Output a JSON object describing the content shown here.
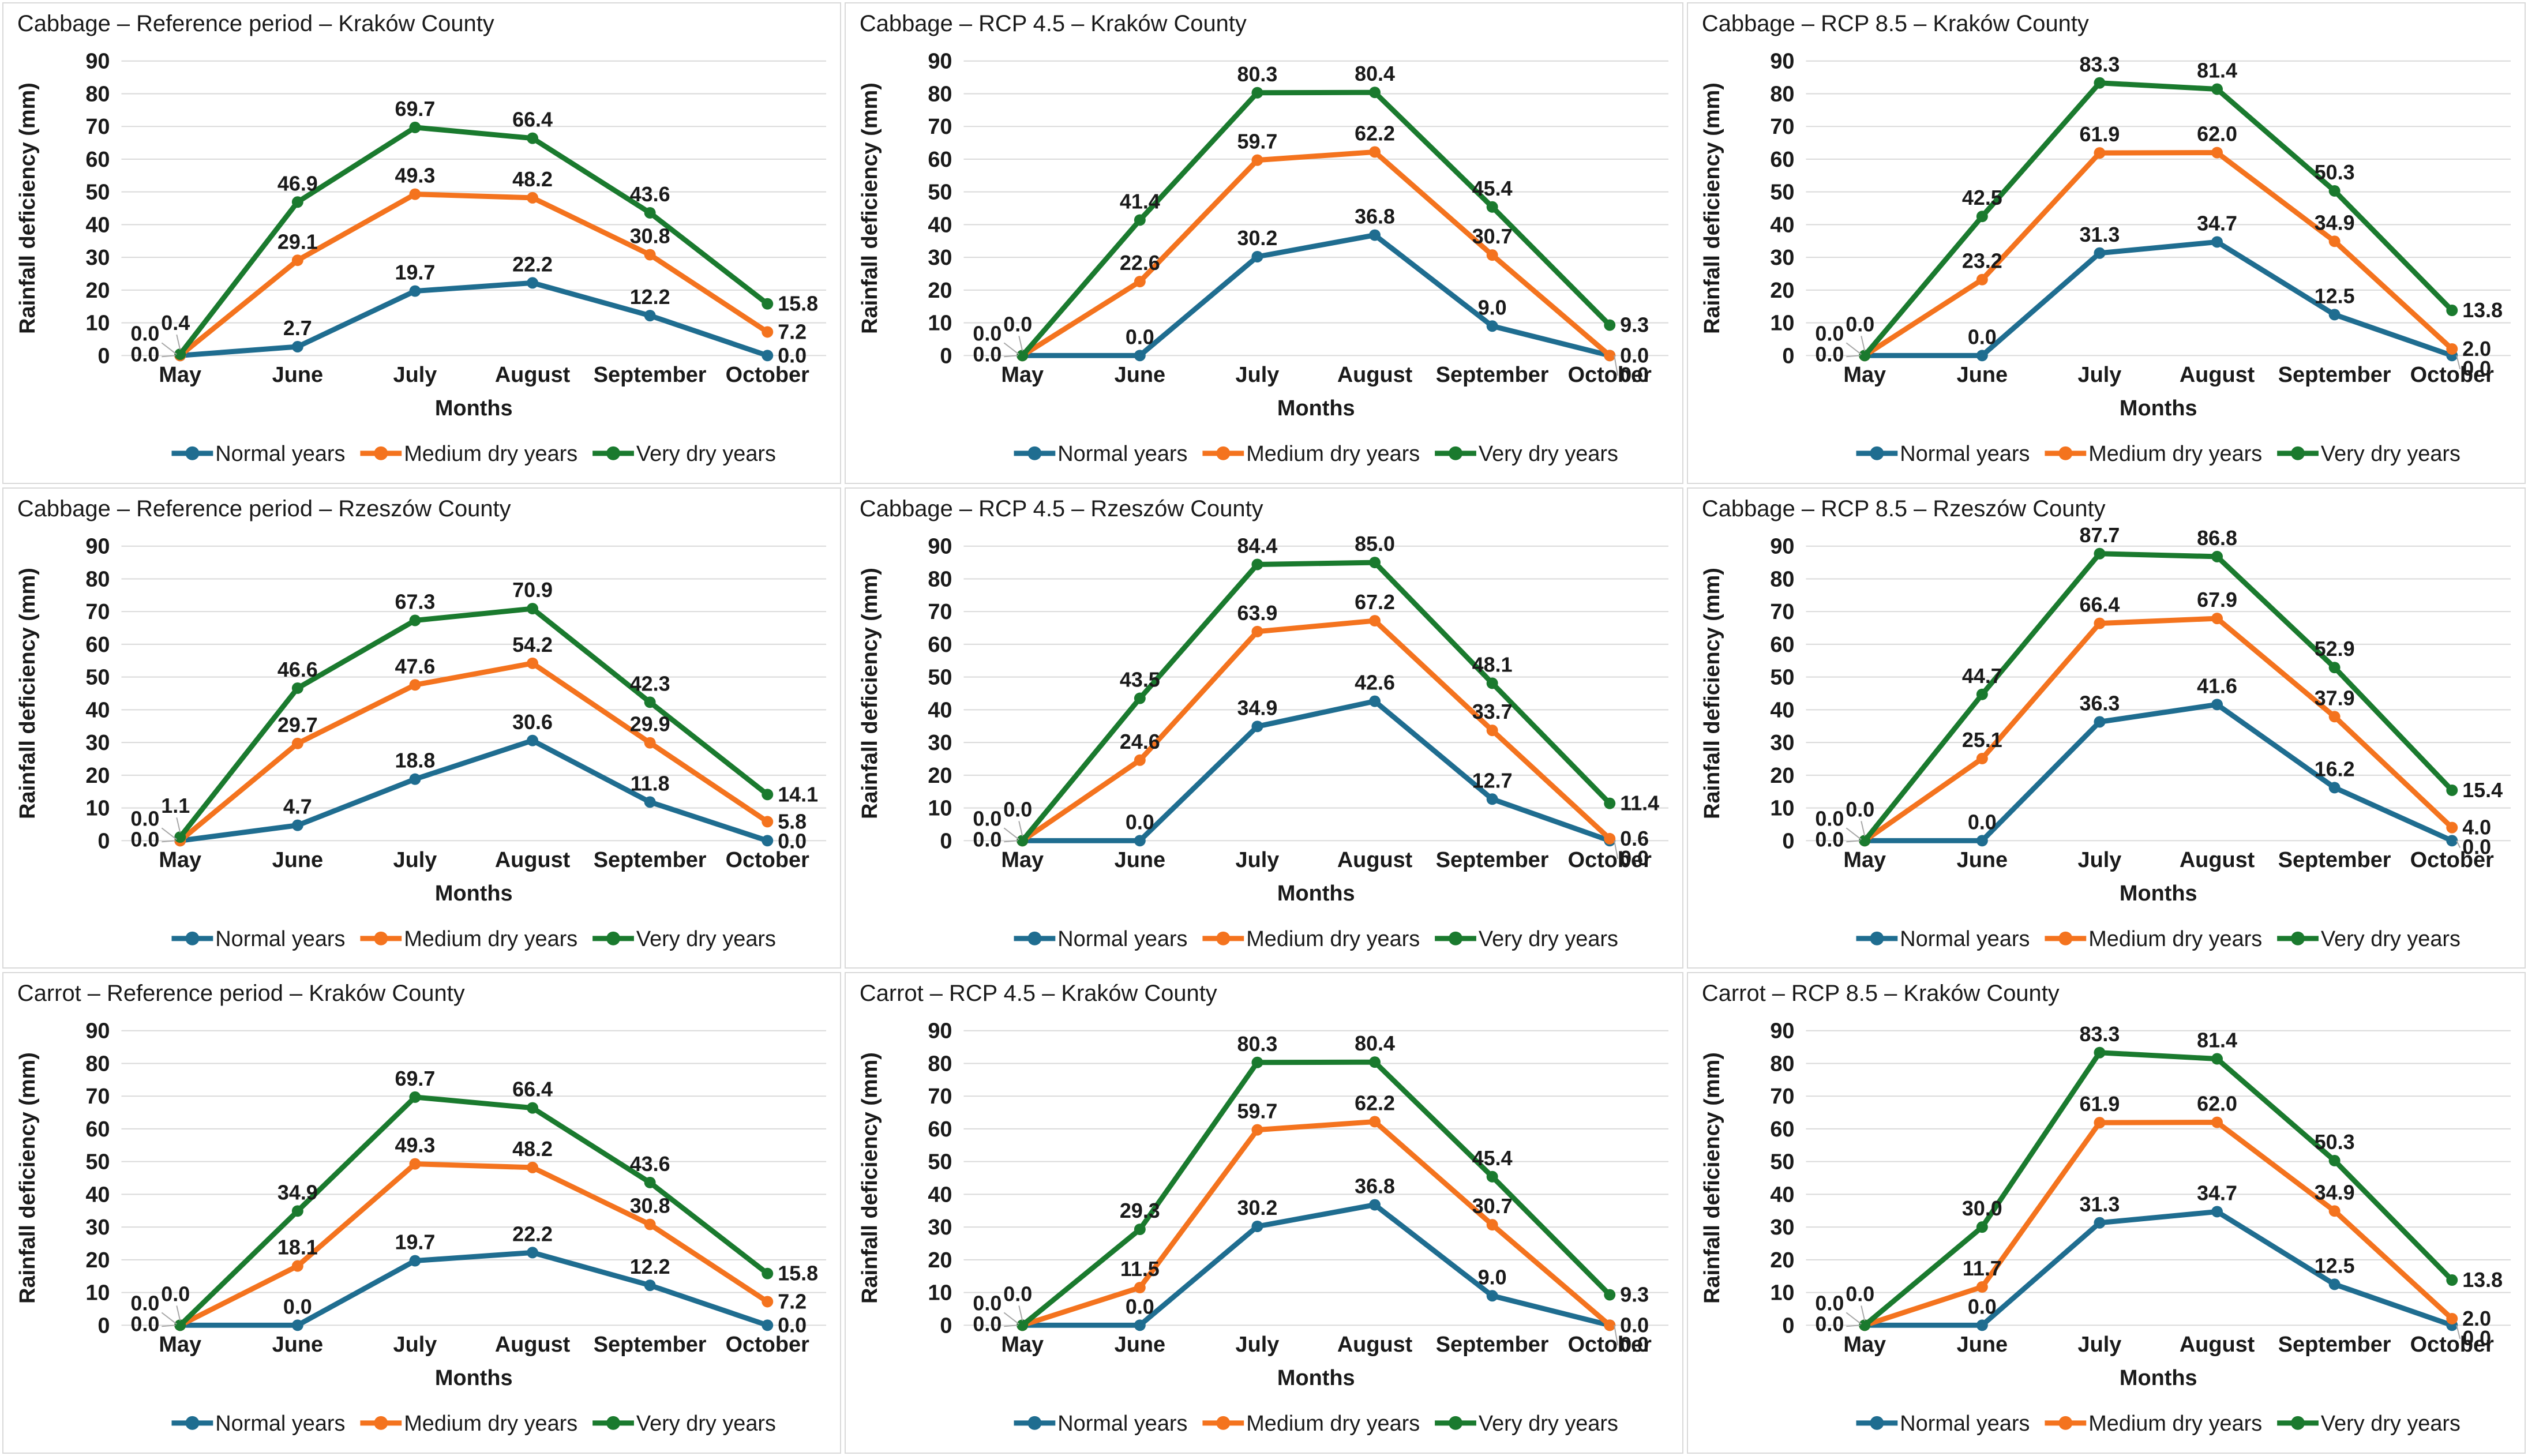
{
  "page": {
    "background": "#FFFFFF",
    "grid_rows": 3,
    "grid_cols": 3
  },
  "colors": {
    "normal_years": "#1F6D90",
    "medium_dry_years": "#F4731E",
    "very_dry_years": "#1A7A2E",
    "gridline": "#D9D9D9",
    "panel_border": "#D9D9D9",
    "label_text": "#1A1A1A",
    "leader_line": "#A6A6A6"
  },
  "chart_data": [
    {
      "type": "line",
      "title": "Cabbage – Reference period – Kraków County",
      "categories": [
        "May",
        "June",
        "July",
        "August",
        "September",
        "October"
      ],
      "xlabel": "Months",
      "ylabel": "Rainfall deficiency  (mm)",
      "ylim": [
        0,
        90
      ],
      "ytick_step": 10,
      "grid": true,
      "legend_position": "bottom",
      "series": [
        {
          "name": "Normal years",
          "color": "#1F6D90",
          "values": [
            0.0,
            2.7,
            19.7,
            22.2,
            12.2,
            0.0
          ]
        },
        {
          "name": "Medium dry years",
          "color": "#F4731E",
          "values": [
            0.0,
            29.1,
            49.3,
            48.2,
            30.8,
            7.2
          ]
        },
        {
          "name": "Very dry years",
          "color": "#1A7A2E",
          "values": [
            0.4,
            46.9,
            69.7,
            66.4,
            43.6,
            15.8
          ]
        }
      ]
    },
    {
      "type": "line",
      "title": "Cabbage – RCP 4.5 – Kraków County",
      "categories": [
        "May",
        "June",
        "July",
        "August",
        "September",
        "October"
      ],
      "xlabel": "Months",
      "ylabel": "Rainfall deficiency  (mm)",
      "ylim": [
        0,
        90
      ],
      "ytick_step": 10,
      "grid": true,
      "legend_position": "bottom",
      "series": [
        {
          "name": "Normal years",
          "color": "#1F6D90",
          "values": [
            0.0,
            0.0,
            30.2,
            36.8,
            9.0,
            0.0
          ]
        },
        {
          "name": "Medium dry years",
          "color": "#F4731E",
          "values": [
            0.0,
            22.6,
            59.7,
            62.2,
            30.7,
            0.0
          ]
        },
        {
          "name": "Very dry years",
          "color": "#1A7A2E",
          "values": [
            0.0,
            41.4,
            80.3,
            80.4,
            45.4,
            9.3
          ]
        }
      ]
    },
    {
      "type": "line",
      "title": "Cabbage – RCP 8.5 – Kraków County",
      "categories": [
        "May",
        "June",
        "July",
        "August",
        "September",
        "October"
      ],
      "xlabel": "Months",
      "ylabel": "Rainfall deficiency  (mm)",
      "ylim": [
        0,
        90
      ],
      "ytick_step": 10,
      "grid": true,
      "legend_position": "bottom",
      "series": [
        {
          "name": "Normal years",
          "color": "#1F6D90",
          "values": [
            0.0,
            0.0,
            31.3,
            34.7,
            12.5,
            0.0
          ]
        },
        {
          "name": "Medium dry years",
          "color": "#F4731E",
          "values": [
            0.0,
            23.2,
            61.9,
            62.0,
            34.9,
            2.0
          ]
        },
        {
          "name": "Very dry years",
          "color": "#1A7A2E",
          "values": [
            0.0,
            42.5,
            83.3,
            81.4,
            50.3,
            13.8
          ]
        }
      ]
    },
    {
      "type": "line",
      "title": "Cabbage – Reference period – Rzeszów County",
      "categories": [
        "May",
        "June",
        "July",
        "August",
        "September",
        "October"
      ],
      "xlabel": "Months",
      "ylabel": "Rainfall deficiency  (mm)",
      "ylim": [
        0,
        90
      ],
      "ytick_step": 10,
      "grid": true,
      "legend_position": "bottom",
      "series": [
        {
          "name": "Normal years",
          "color": "#1F6D90",
          "values": [
            0.0,
            4.7,
            18.8,
            30.6,
            11.8,
            0.0
          ]
        },
        {
          "name": "Medium dry years",
          "color": "#F4731E",
          "values": [
            0.0,
            29.7,
            47.6,
            54.2,
            29.9,
            5.8
          ]
        },
        {
          "name": "Very dry years",
          "color": "#1A7A2E",
          "values": [
            1.1,
            46.6,
            67.3,
            70.9,
            42.3,
            14.1
          ]
        }
      ]
    },
    {
      "type": "line",
      "title": "Cabbage – RCP 4.5 – Rzeszów County",
      "categories": [
        "May",
        "June",
        "July",
        "August",
        "September",
        "October"
      ],
      "xlabel": "Months",
      "ylabel": "Rainfall deficiency  (mm)",
      "ylim": [
        0,
        90
      ],
      "ytick_step": 10,
      "grid": true,
      "legend_position": "bottom",
      "series": [
        {
          "name": "Normal years",
          "color": "#1F6D90",
          "values": [
            0.0,
            0.0,
            34.9,
            42.6,
            12.7,
            0.0
          ]
        },
        {
          "name": "Medium dry years",
          "color": "#F4731E",
          "values": [
            0.0,
            24.6,
            63.9,
            67.2,
            33.7,
            0.6
          ]
        },
        {
          "name": "Very dry years",
          "color": "#1A7A2E",
          "values": [
            0.0,
            43.5,
            84.4,
            85.0,
            48.1,
            11.4
          ]
        }
      ]
    },
    {
      "type": "line",
      "title": "Cabbage – RCP 8.5 – Rzeszów County",
      "categories": [
        "May",
        "June",
        "July",
        "August",
        "September",
        "October"
      ],
      "xlabel": "Months",
      "ylabel": "Rainfall deficiency  (mm)",
      "ylim": [
        0,
        90
      ],
      "ytick_step": 10,
      "grid": true,
      "legend_position": "bottom",
      "series": [
        {
          "name": "Normal years",
          "color": "#1F6D90",
          "values": [
            0.0,
            0.0,
            36.3,
            41.6,
            16.2,
            0.0
          ]
        },
        {
          "name": "Medium dry years",
          "color": "#F4731E",
          "values": [
            0.0,
            25.1,
            66.4,
            67.9,
            37.9,
            4.0
          ]
        },
        {
          "name": "Very dry years",
          "color": "#1A7A2E",
          "values": [
            0.0,
            44.7,
            87.7,
            86.8,
            52.9,
            15.4
          ]
        }
      ]
    },
    {
      "type": "line",
      "title": "Carrot – Reference period – Kraków County",
      "categories": [
        "May",
        "June",
        "July",
        "August",
        "September",
        "October"
      ],
      "xlabel": "Months",
      "ylabel": "Rainfall deficiency  (mm)",
      "ylim": [
        0,
        90
      ],
      "ytick_step": 10,
      "grid": true,
      "legend_position": "bottom",
      "series": [
        {
          "name": "Normal years",
          "color": "#1F6D90",
          "values": [
            0.0,
            0.0,
            19.7,
            22.2,
            12.2,
            0.0
          ]
        },
        {
          "name": "Medium dry years",
          "color": "#F4731E",
          "values": [
            0.0,
            18.1,
            49.3,
            48.2,
            30.8,
            7.2
          ]
        },
        {
          "name": "Very dry years",
          "color": "#1A7A2E",
          "values": [
            0.0,
            34.9,
            69.7,
            66.4,
            43.6,
            15.8
          ]
        }
      ]
    },
    {
      "type": "line",
      "title": "Carrot – RCP 4.5 – Kraków County",
      "categories": [
        "May",
        "June",
        "July",
        "August",
        "September",
        "October"
      ],
      "xlabel": "Months",
      "ylabel": "Rainfall deficiency  (mm)",
      "ylim": [
        0,
        90
      ],
      "ytick_step": 10,
      "grid": true,
      "legend_position": "bottom",
      "series": [
        {
          "name": "Normal years",
          "color": "#1F6D90",
          "values": [
            0.0,
            0.0,
            30.2,
            36.8,
            9.0,
            0.0
          ]
        },
        {
          "name": "Medium dry years",
          "color": "#F4731E",
          "values": [
            0.0,
            11.5,
            59.7,
            62.2,
            30.7,
            0.0
          ]
        },
        {
          "name": "Very dry years",
          "color": "#1A7A2E",
          "values": [
            0.0,
            29.3,
            80.3,
            80.4,
            45.4,
            9.3
          ]
        }
      ]
    },
    {
      "type": "line",
      "title": "Carrot – RCP 8.5 – Kraków County",
      "categories": [
        "May",
        "June",
        "July",
        "August",
        "September",
        "October"
      ],
      "xlabel": "Months",
      "ylabel": "Rainfall deficiency  (mm)",
      "ylim": [
        0,
        90
      ],
      "ytick_step": 10,
      "grid": true,
      "legend_position": "bottom",
      "series": [
        {
          "name": "Normal years",
          "color": "#1F6D90",
          "values": [
            0.0,
            0.0,
            31.3,
            34.7,
            12.5,
            0.0
          ]
        },
        {
          "name": "Medium dry years",
          "color": "#F4731E",
          "values": [
            0.0,
            11.7,
            61.9,
            62.0,
            34.9,
            2.0
          ]
        },
        {
          "name": "Very dry years",
          "color": "#1A7A2E",
          "values": [
            0.0,
            30.0,
            83.3,
            81.4,
            50.3,
            13.8
          ]
        }
      ]
    }
  ]
}
